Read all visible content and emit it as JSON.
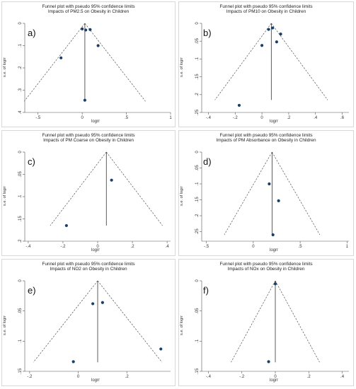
{
  "chart_data": [
    {
      "type": "scatter",
      "title": "Funnel plot with pseudo 95% confidence limits",
      "subtitle": "Impacts of PM2.5 on Obesity in Children",
      "panel_label": "a)",
      "xlabel": "logrr",
      "ylabel": "s.e. of logrr",
      "xlim": [
        -0.65,
        1.0
      ],
      "ylim": [
        0,
        0.4
      ],
      "y_reversed": true,
      "xticks": [
        -0.5,
        0,
        0.5,
        1
      ],
      "xtick_labels": [
        "-.5",
        "0",
        ".5",
        "1"
      ],
      "yticks": [
        0,
        0.1,
        0.2,
        0.3,
        0.4
      ],
      "ytick_labels": [
        "0",
        ".1",
        ".2",
        ".3",
        ".4"
      ],
      "center": 0.03,
      "funnel_max_se": 0.35,
      "points": [
        {
          "x": 0.0,
          "y": 0.025
        },
        {
          "x": 0.04,
          "y": 0.03
        },
        {
          "x": 0.09,
          "y": 0.028
        },
        {
          "x": 0.18,
          "y": 0.1
        },
        {
          "x": -0.24,
          "y": 0.155
        },
        {
          "x": 0.03,
          "y": 0.345
        }
      ]
    },
    {
      "type": "scatter",
      "title": "Funnel plot with pseudo 95% confidence limits",
      "subtitle": "Impacts of PM10 on Obesity in Children",
      "panel_label": "b)",
      "xlabel": "logrr",
      "ylabel": "s.e. of logrr",
      "xlim": [
        -0.45,
        0.65
      ],
      "ylim": [
        0,
        0.25
      ],
      "y_reversed": true,
      "xticks": [
        -0.4,
        -0.2,
        0,
        0.2,
        0.4,
        0.6
      ],
      "xtick_labels": [
        "-.4",
        "-.2",
        "0",
        ".2",
        ".4",
        ".6"
      ],
      "yticks": [
        0,
        0.05,
        0.1,
        0.15,
        0.2,
        0.25
      ],
      "ytick_labels": [
        "0",
        ".05",
        ".1",
        ".15",
        ".2",
        ".25"
      ],
      "center": 0.07,
      "funnel_max_se": 0.215,
      "points": [
        {
          "x": 0.05,
          "y": 0.017
        },
        {
          "x": 0.08,
          "y": 0.013
        },
        {
          "x": 0.14,
          "y": 0.03
        },
        {
          "x": 0.11,
          "y": 0.052
        },
        {
          "x": 0.0,
          "y": 0.062
        },
        {
          "x": -0.17,
          "y": 0.23
        }
      ]
    },
    {
      "type": "scatter",
      "title": "Funnel plot with pseudo 95% confidence limits",
      "subtitle": "Impacts of PM Coarse on Obesity in Children",
      "panel_label": "c)",
      "xlabel": "logrr",
      "ylabel": "s.e. of logrr",
      "xlim": [
        -0.42,
        0.42
      ],
      "ylim": [
        0,
        0.2
      ],
      "y_reversed": true,
      "xticks": [
        -0.4,
        -0.2,
        0,
        0.2,
        0.4
      ],
      "xtick_labels": [
        "-.4",
        "-.2",
        "0",
        ".2",
        ".4"
      ],
      "yticks": [
        0,
        0.05,
        0.1,
        0.15,
        0.2
      ],
      "ytick_labels": [
        "0",
        ".05",
        ".1",
        ".15",
        ".2"
      ],
      "center": 0.05,
      "funnel_max_se": 0.165,
      "points": [
        {
          "x": 0.08,
          "y": 0.063
        },
        {
          "x": -0.18,
          "y": 0.165
        }
      ]
    },
    {
      "type": "scatter",
      "title": "Funnel plot with pseudo 95% confidence limits",
      "subtitle": "Impacts of PM Absorbance on Obesity in Children",
      "panel_label": "d)",
      "xlabel": "logrr",
      "ylabel": "s.e. of logrr",
      "xlim": [
        -0.55,
        1.02
      ],
      "ylim": [
        0,
        0.28
      ],
      "y_reversed": true,
      "xticks": [
        -0.5,
        0,
        0.5,
        1
      ],
      "xtick_labels": [
        "-.5",
        "0",
        ".5",
        "1"
      ],
      "yticks": [
        0,
        0.05,
        0.1,
        0.15,
        0.2,
        0.25
      ],
      "ytick_labels": [
        "0",
        ".05",
        ".1",
        ".15",
        ".2",
        ".25"
      ],
      "center": 0.2,
      "funnel_max_se": 0.26,
      "points": [
        {
          "x": 0.17,
          "y": 0.1
        },
        {
          "x": 0.27,
          "y": 0.153
        },
        {
          "x": 0.21,
          "y": 0.26
        }
      ]
    },
    {
      "type": "scatter",
      "title": "Funnel plot with pseudo 95% confidence limits",
      "subtitle": "Impacts of NO2 on Obesity in Children",
      "panel_label": "e)",
      "xlabel": "logrr",
      "ylabel": "s.e. of logrr",
      "xlim": [
        -0.22,
        0.38
      ],
      "ylim": [
        0,
        0.15
      ],
      "y_reversed": true,
      "xticks": [
        -0.2,
        0,
        0.2
      ],
      "xtick_labels": [
        "-.2",
        "0",
        ".2"
      ],
      "yticks": [
        0,
        0.05,
        0.1,
        0.15
      ],
      "ytick_labels": [
        "0",
        ".05",
        ".1",
        ".15"
      ],
      "center": 0.08,
      "funnel_max_se": 0.135,
      "points": [
        {
          "x": 0.06,
          "y": 0.038
        },
        {
          "x": 0.1,
          "y": 0.036
        },
        {
          "x": 0.34,
          "y": 0.113
        },
        {
          "x": -0.02,
          "y": 0.134
        }
      ]
    },
    {
      "type": "scatter",
      "title": "Funnel plot with pseudo 95% confidence limits",
      "subtitle": "Impacts of NOx on Obesity in Children",
      "panel_label": "f)",
      "xlabel": "logrr",
      "ylabel": "s.e. of logrr",
      "xlim": [
        -0.44,
        0.44
      ],
      "ylim": [
        0,
        0.15
      ],
      "y_reversed": true,
      "xticks": [
        -0.4,
        -0.2,
        0,
        0.2,
        0.4
      ],
      "xtick_labels": [
        "-.4",
        "-.2",
        "0",
        ".2",
        ".4"
      ],
      "yticks": [
        0,
        0.05,
        0.1,
        0.15
      ],
      "ytick_labels": [
        "0",
        ".05",
        ".1",
        ".15"
      ],
      "center": 0.0,
      "funnel_max_se": 0.135,
      "points": [
        {
          "x": 0.0,
          "y": 0.005
        },
        {
          "x": -0.04,
          "y": 0.134
        }
      ]
    }
  ],
  "colors": {
    "point": "#1b3f66",
    "line": "#333333",
    "funnel": "#555555",
    "frame": "#d8d8d8"
  }
}
